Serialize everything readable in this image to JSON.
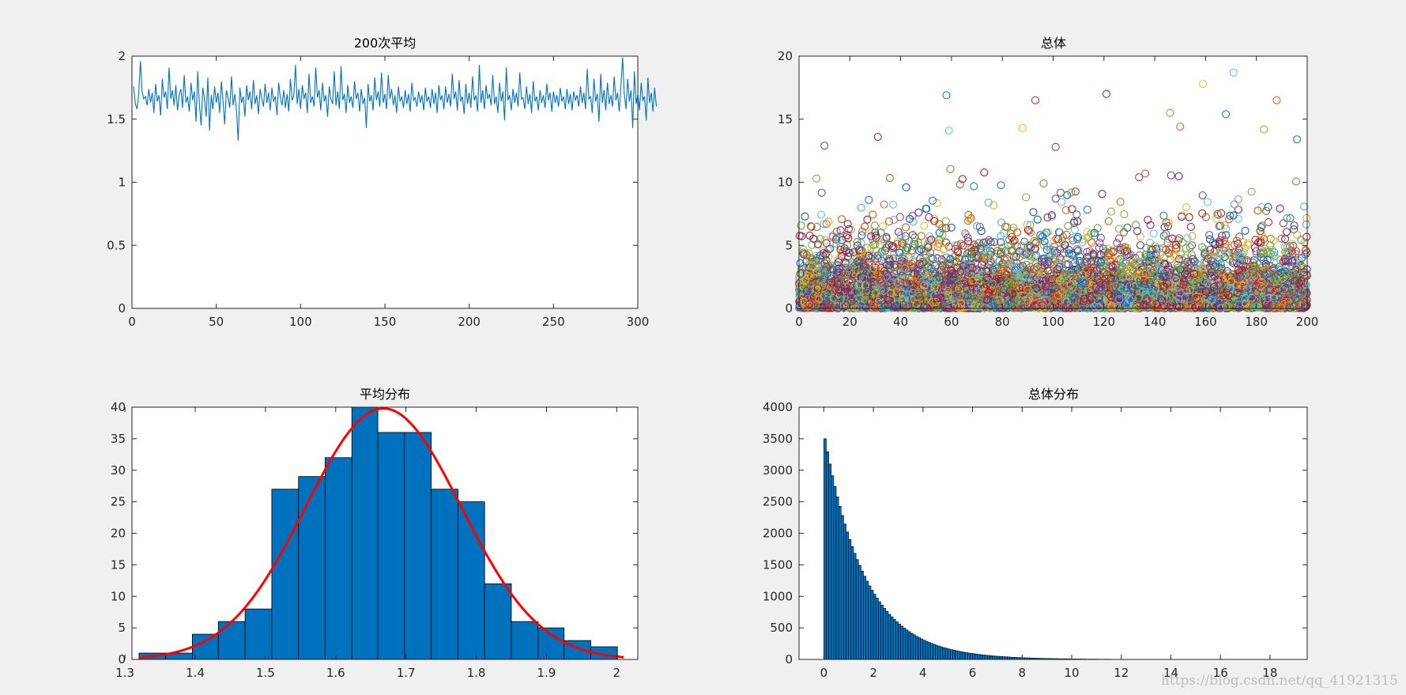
{
  "colors": {
    "figure_bg": "#f0f0f0",
    "axes_bg": "#ffffff",
    "axis_color": "#262626",
    "line_series": "#0072bd",
    "bar_fill": "#0072bd",
    "fit_curve": "#ff0000",
    "scatter_palette": [
      "#0072bd",
      "#d95319",
      "#edb120",
      "#7e2f8e",
      "#77ac30",
      "#4dbeee",
      "#a2142f"
    ]
  },
  "watermark": "https://blog.csdn.net/qq_41921315",
  "chart_data": [
    {
      "id": "avg200",
      "type": "line",
      "title": "200次平均",
      "xlabel": "",
      "ylabel": "",
      "xlim": [
        0,
        300
      ],
      "ylim": [
        0,
        2
      ],
      "xticks": [
        0,
        50,
        100,
        150,
        200,
        250,
        300
      ],
      "xtick_labels": [
        "0",
        "50",
        "100",
        "150",
        "200",
        "250",
        "300"
      ],
      "yticks": [
        0,
        0.5,
        1,
        1.5,
        2
      ],
      "ytick_labels": [
        "0",
        "0.5",
        "1",
        "1.5",
        "2"
      ],
      "grid": false,
      "series": [
        {
          "values": [
            1.76,
            1.62,
            1.58,
            1.7,
            1.96,
            1.72,
            1.66,
            1.68,
            1.61,
            1.74,
            1.63,
            1.71,
            1.55,
            1.78,
            1.64,
            1.69,
            1.53,
            1.82,
            1.67,
            1.72,
            1.58,
            1.91,
            1.66,
            1.73,
            1.61,
            1.77,
            1.57,
            1.69,
            1.74,
            1.59,
            1.85,
            1.63,
            1.68,
            1.56,
            1.79,
            1.65,
            1.72,
            1.48,
            1.88,
            1.62,
            1.45,
            1.75,
            1.66,
            1.52,
            1.83,
            1.41,
            1.69,
            1.58,
            1.76,
            1.63,
            1.71,
            1.55,
            1.8,
            1.64,
            1.46,
            1.73,
            1.67,
            1.59,
            1.84,
            1.61,
            1.7,
            1.56,
            1.33,
            1.75,
            1.63,
            1.68,
            1.52,
            1.77,
            1.65,
            1.72,
            1.58,
            1.81,
            1.62,
            1.69,
            1.54,
            1.74,
            1.66,
            1.6,
            1.78,
            1.63,
            1.71,
            1.57,
            1.75,
            1.64,
            1.68,
            1.53,
            1.79,
            1.67,
            1.61,
            1.73,
            1.59,
            1.7,
            1.56,
            1.82,
            1.65,
            1.69,
            1.93,
            1.62,
            1.74,
            1.58,
            1.77,
            1.66,
            1.71,
            1.55,
            1.86,
            1.63,
            1.68,
            1.6,
            1.91,
            1.67,
            1.73,
            1.57,
            1.79,
            1.64,
            1.69,
            1.52,
            1.76,
            1.66,
            1.62,
            1.88,
            1.61,
            1.72,
            1.58,
            1.92,
            1.65,
            1.7,
            1.55,
            1.77,
            1.63,
            1.68,
            1.59,
            1.8,
            1.66,
            1.71,
            1.56,
            1.74,
            1.62,
            1.67,
            1.43,
            1.78,
            1.64,
            1.69,
            1.57,
            1.83,
            1.65,
            1.72,
            1.6,
            1.87,
            1.63,
            1.7,
            1.58,
            1.85,
            1.66,
            1.74,
            1.61,
            1.69,
            1.55,
            1.76,
            1.64,
            1.68,
            1.59,
            1.73,
            1.62,
            1.7,
            1.56,
            1.79,
            1.65,
            1.67,
            1.6,
            1.72,
            1.63,
            1.69,
            1.57,
            1.75,
            1.64,
            1.68,
            1.59,
            1.74,
            1.62,
            1.71,
            1.55,
            1.77,
            1.65,
            1.69,
            1.58,
            1.76,
            1.63,
            1.7,
            1.6,
            1.86,
            1.66,
            1.72,
            1.57,
            1.81,
            1.64,
            1.68,
            1.54,
            1.78,
            1.62,
            1.71,
            1.59,
            1.84,
            1.65,
            1.69,
            1.56,
            1.93,
            1.63,
            1.73,
            1.58,
            1.77,
            1.66,
            1.7,
            1.61,
            1.85,
            1.62,
            1.68,
            1.55,
            1.79,
            1.64,
            1.72,
            1.49,
            1.91,
            1.65,
            1.69,
            1.57,
            1.74,
            1.63,
            1.71,
            1.6,
            1.87,
            1.66,
            1.67,
            1.58,
            1.76,
            1.62,
            1.7,
            1.55,
            1.8,
            1.64,
            1.68,
            1.57,
            1.73,
            1.63,
            1.69,
            1.59,
            1.78,
            1.65,
            1.71,
            1.56,
            1.72,
            1.63,
            1.69,
            1.6,
            1.75,
            1.64,
            1.68,
            1.58,
            1.74,
            1.62,
            1.7,
            1.57,
            1.72,
            1.65,
            1.69,
            1.6,
            1.76,
            1.63,
            1.71,
            1.58,
            1.9,
            1.66,
            1.68,
            1.55,
            1.82,
            1.64,
            1.7,
            1.48,
            1.86,
            1.63,
            1.73,
            1.57,
            1.79,
            1.62,
            1.69,
            1.6,
            1.84,
            1.65,
            1.71,
            1.56,
            1.77,
            1.99,
            1.7,
            1.58,
            1.82,
            1.64,
            1.73,
            1.43,
            1.88,
            1.62,
            1.7,
            1.57,
            1.79,
            1.65,
            1.68,
            1.49,
            1.83,
            1.63,
            1.71,
            1.56,
            1.75,
            1.6
          ]
        }
      ]
    },
    {
      "id": "population",
      "type": "scatter",
      "title": "总体",
      "xlabel": "",
      "ylabel": "",
      "xlim": [
        0,
        200
      ],
      "ylim": [
        0,
        20
      ],
      "xticks": [
        0,
        20,
        40,
        60,
        80,
        100,
        120,
        140,
        160,
        180,
        200
      ],
      "xtick_labels": [
        "0",
        "20",
        "40",
        "60",
        "80",
        "100",
        "120",
        "140",
        "160",
        "180",
        "200"
      ],
      "yticks": [
        0,
        5,
        10,
        15,
        20
      ],
      "ytick_labels": [
        "0",
        "5",
        "10",
        "15",
        "20"
      ],
      "grid": false,
      "marker": "open-circle",
      "series_count": 200,
      "points_per_series": 300,
      "distribution": "exponential",
      "outliers": [
        {
          "x": 58,
          "y": 16.9
        },
        {
          "x": 93,
          "y": 16.5
        },
        {
          "x": 121,
          "y": 17.0
        },
        {
          "x": 159,
          "y": 17.8
        },
        {
          "x": 171,
          "y": 18.7
        },
        {
          "x": 188,
          "y": 16.5
        },
        {
          "x": 146,
          "y": 15.5
        },
        {
          "x": 168,
          "y": 15.4
        },
        {
          "x": 10,
          "y": 12.9
        },
        {
          "x": 31,
          "y": 13.6
        },
        {
          "x": 88,
          "y": 14.3
        },
        {
          "x": 59,
          "y": 14.1
        },
        {
          "x": 150,
          "y": 14.4
        },
        {
          "x": 183,
          "y": 14.2
        },
        {
          "x": 196,
          "y": 13.4
        },
        {
          "x": 101,
          "y": 12.8
        }
      ]
    },
    {
      "id": "avg_dist",
      "type": "bar",
      "title": "平均分布",
      "xlabel": "",
      "ylabel": "",
      "xlim": [
        1.31,
        2.03
      ],
      "ylim": [
        0,
        40
      ],
      "xticks": [
        1.3,
        1.4,
        1.5,
        1.6,
        1.7,
        1.8,
        1.9,
        2
      ],
      "xtick_labels": [
        "1.3",
        "1.4",
        "1.5",
        "1.6",
        "1.7",
        "1.8",
        "1.9",
        "2"
      ],
      "yticks": [
        0,
        5,
        10,
        15,
        20,
        25,
        30,
        35,
        40
      ],
      "ytick_labels": [
        "0",
        "5",
        "10",
        "15",
        "20",
        "25",
        "30",
        "35",
        "40"
      ],
      "grid": false,
      "bin_edges": [
        1.32,
        1.358,
        1.396,
        1.433,
        1.471,
        1.509,
        1.547,
        1.585,
        1.623,
        1.66,
        1.698,
        1.736,
        1.774,
        1.812,
        1.85,
        1.888,
        1.925,
        1.963,
        2.001
      ],
      "values": [
        1,
        1,
        4,
        6,
        8,
        27,
        29,
        32,
        40,
        36,
        36,
        27,
        25,
        12,
        6,
        5,
        3,
        2
      ],
      "fit": {
        "type": "normal",
        "mean": 1.668,
        "sd": 0.111,
        "peak": 39.8,
        "x_range": [
          1.32,
          2.01
        ]
      }
    },
    {
      "id": "pop_dist",
      "type": "bar",
      "title": "总体分布",
      "xlabel": "",
      "ylabel": "",
      "xlim": [
        -1,
        19.5
      ],
      "ylim": [
        0,
        4000
      ],
      "xticks": [
        0,
        2,
        4,
        6,
        8,
        10,
        12,
        14,
        16,
        18
      ],
      "xtick_labels": [
        "0",
        "2",
        "4",
        "6",
        "8",
        "10",
        "12",
        "14",
        "16",
        "18"
      ],
      "yticks": [
        0,
        500,
        1000,
        1500,
        2000,
        2500,
        3000,
        3500,
        4000
      ],
      "ytick_labels": [
        "0",
        "500",
        "1000",
        "1500",
        "2000",
        "2500",
        "3000",
        "3500",
        "4000"
      ],
      "grid": false,
      "bin_start": 0,
      "bin_width": 0.1,
      "peak": 3500,
      "decay_rate": 0.61,
      "max_value": 18.7
    }
  ]
}
